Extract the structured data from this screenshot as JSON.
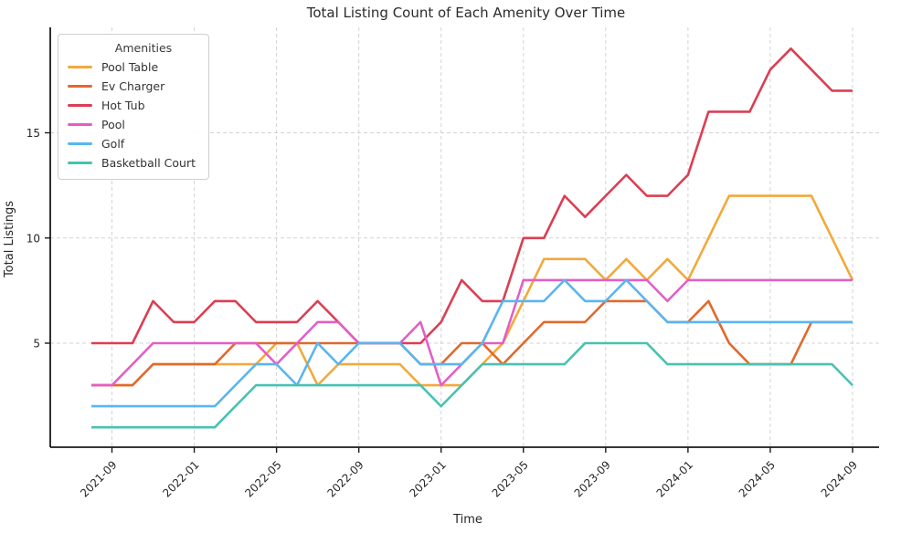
{
  "chart_data": {
    "type": "line",
    "title": "Total Listing Count of Each Amenity Over Time",
    "xlabel": "Time",
    "ylabel": "Total Listings",
    "legend_title": "Amenities",
    "legend_position": "upper left",
    "grid": true,
    "grid_style": "dashed",
    "ylim": [
      0,
      20
    ],
    "y_ticks": [
      5,
      10,
      15
    ],
    "x_tick_labels": [
      "2021-09",
      "2022-01",
      "2022-05",
      "2022-09",
      "2023-01",
      "2023-05",
      "2023-09",
      "2024-01",
      "2024-05",
      "2024-09"
    ],
    "x": [
      "2021-08",
      "2021-09",
      "2021-10",
      "2021-11",
      "2021-12",
      "2022-01",
      "2022-02",
      "2022-03",
      "2022-04",
      "2022-05",
      "2022-06",
      "2022-07",
      "2022-08",
      "2022-09",
      "2022-10",
      "2022-11",
      "2022-12",
      "2023-01",
      "2023-02",
      "2023-03",
      "2023-04",
      "2023-05",
      "2023-06",
      "2023-07",
      "2023-08",
      "2023-09",
      "2023-10",
      "2023-11",
      "2023-12",
      "2024-01",
      "2024-02",
      "2024-03",
      "2024-04",
      "2024-05",
      "2024-06",
      "2024-07",
      "2024-08",
      "2024-09"
    ],
    "series": [
      {
        "name": "Pool Table",
        "color": "#F2A93B",
        "values": [
          3,
          3,
          3,
          4,
          4,
          4,
          4,
          4,
          4,
          5,
          5,
          3,
          4,
          4,
          4,
          4,
          3,
          3,
          3,
          4,
          5,
          7,
          9,
          9,
          9,
          8,
          9,
          8,
          9,
          8,
          10,
          12,
          12,
          12,
          12,
          12,
          10,
          8
        ]
      },
      {
        "name": "Ev Charger",
        "color": "#E0692E",
        "values": [
          3,
          3,
          3,
          4,
          4,
          4,
          4,
          5,
          5,
          5,
          5,
          5,
          5,
          5,
          5,
          5,
          4,
          4,
          5,
          5,
          4,
          5,
          6,
          6,
          6,
          7,
          7,
          7,
          6,
          6,
          7,
          5,
          4,
          4,
          4,
          6,
          6,
          6
        ]
      },
      {
        "name": "Hot Tub",
        "color": "#DB3E52",
        "values": [
          5,
          5,
          5,
          7,
          6,
          6,
          7,
          7,
          6,
          6,
          6,
          7,
          6,
          5,
          5,
          5,
          5,
          6,
          8,
          7,
          7,
          10,
          10,
          12,
          11,
          12,
          13,
          12,
          12,
          13,
          16,
          16,
          16,
          18,
          19,
          18,
          17,
          17
        ]
      },
      {
        "name": "Pool",
        "color": "#E25FC4",
        "values": [
          3,
          3,
          4,
          5,
          5,
          5,
          5,
          5,
          5,
          4,
          5,
          6,
          6,
          5,
          5,
          5,
          6,
          3,
          4,
          5,
          5,
          8,
          8,
          8,
          8,
          8,
          8,
          8,
          7,
          8,
          8,
          8,
          8,
          8,
          8,
          8,
          8,
          8
        ]
      },
      {
        "name": "Golf",
        "color": "#58B6F0",
        "values": [
          2,
          2,
          2,
          2,
          2,
          2,
          2,
          3,
          4,
          4,
          3,
          5,
          4,
          5,
          5,
          5,
          4,
          4,
          4,
          5,
          7,
          7,
          7,
          8,
          7,
          7,
          8,
          7,
          6,
          6,
          6,
          6,
          6,
          6,
          6,
          6,
          6,
          6
        ]
      },
      {
        "name": "Basketball Court",
        "color": "#47C2B1",
        "values": [
          1,
          1,
          1,
          1,
          1,
          1,
          1,
          2,
          3,
          3,
          3,
          3,
          3,
          3,
          3,
          3,
          3,
          2,
          3,
          4,
          4,
          4,
          4,
          4,
          5,
          5,
          5,
          5,
          4,
          4,
          4,
          4,
          4,
          4,
          4,
          4,
          4,
          3
        ]
      }
    ]
  }
}
